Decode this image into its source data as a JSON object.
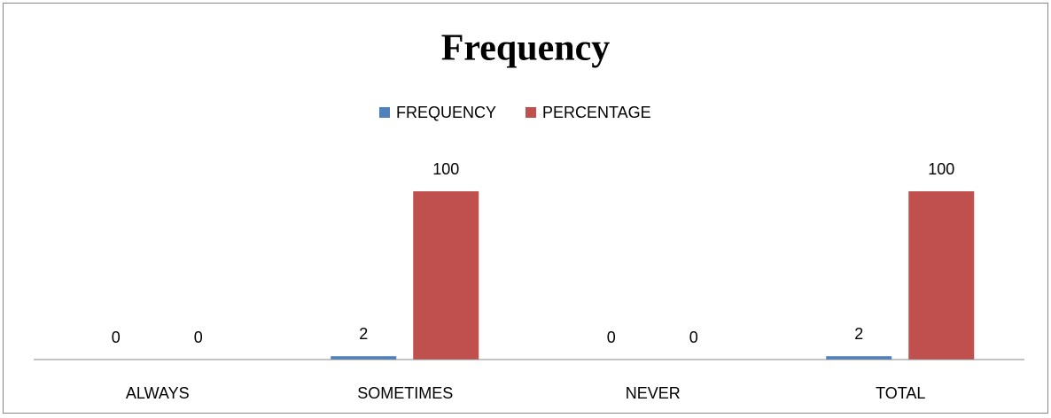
{
  "chart_data": {
    "type": "bar",
    "title": "Frequency",
    "categories": [
      "ALWAYS",
      "SOMETIMES",
      "NEVER",
      "TOTAL"
    ],
    "series": [
      {
        "name": "FREQUENCY",
        "color": "#4f81bd",
        "values": [
          0,
          2,
          0,
          2
        ]
      },
      {
        "name": "PERCENTAGE",
        "color": "#c0504d",
        "values": [
          0,
          100,
          0,
          100
        ]
      }
    ],
    "ylim": [
      0,
      120
    ],
    "legend": "top",
    "data_labels": true
  }
}
